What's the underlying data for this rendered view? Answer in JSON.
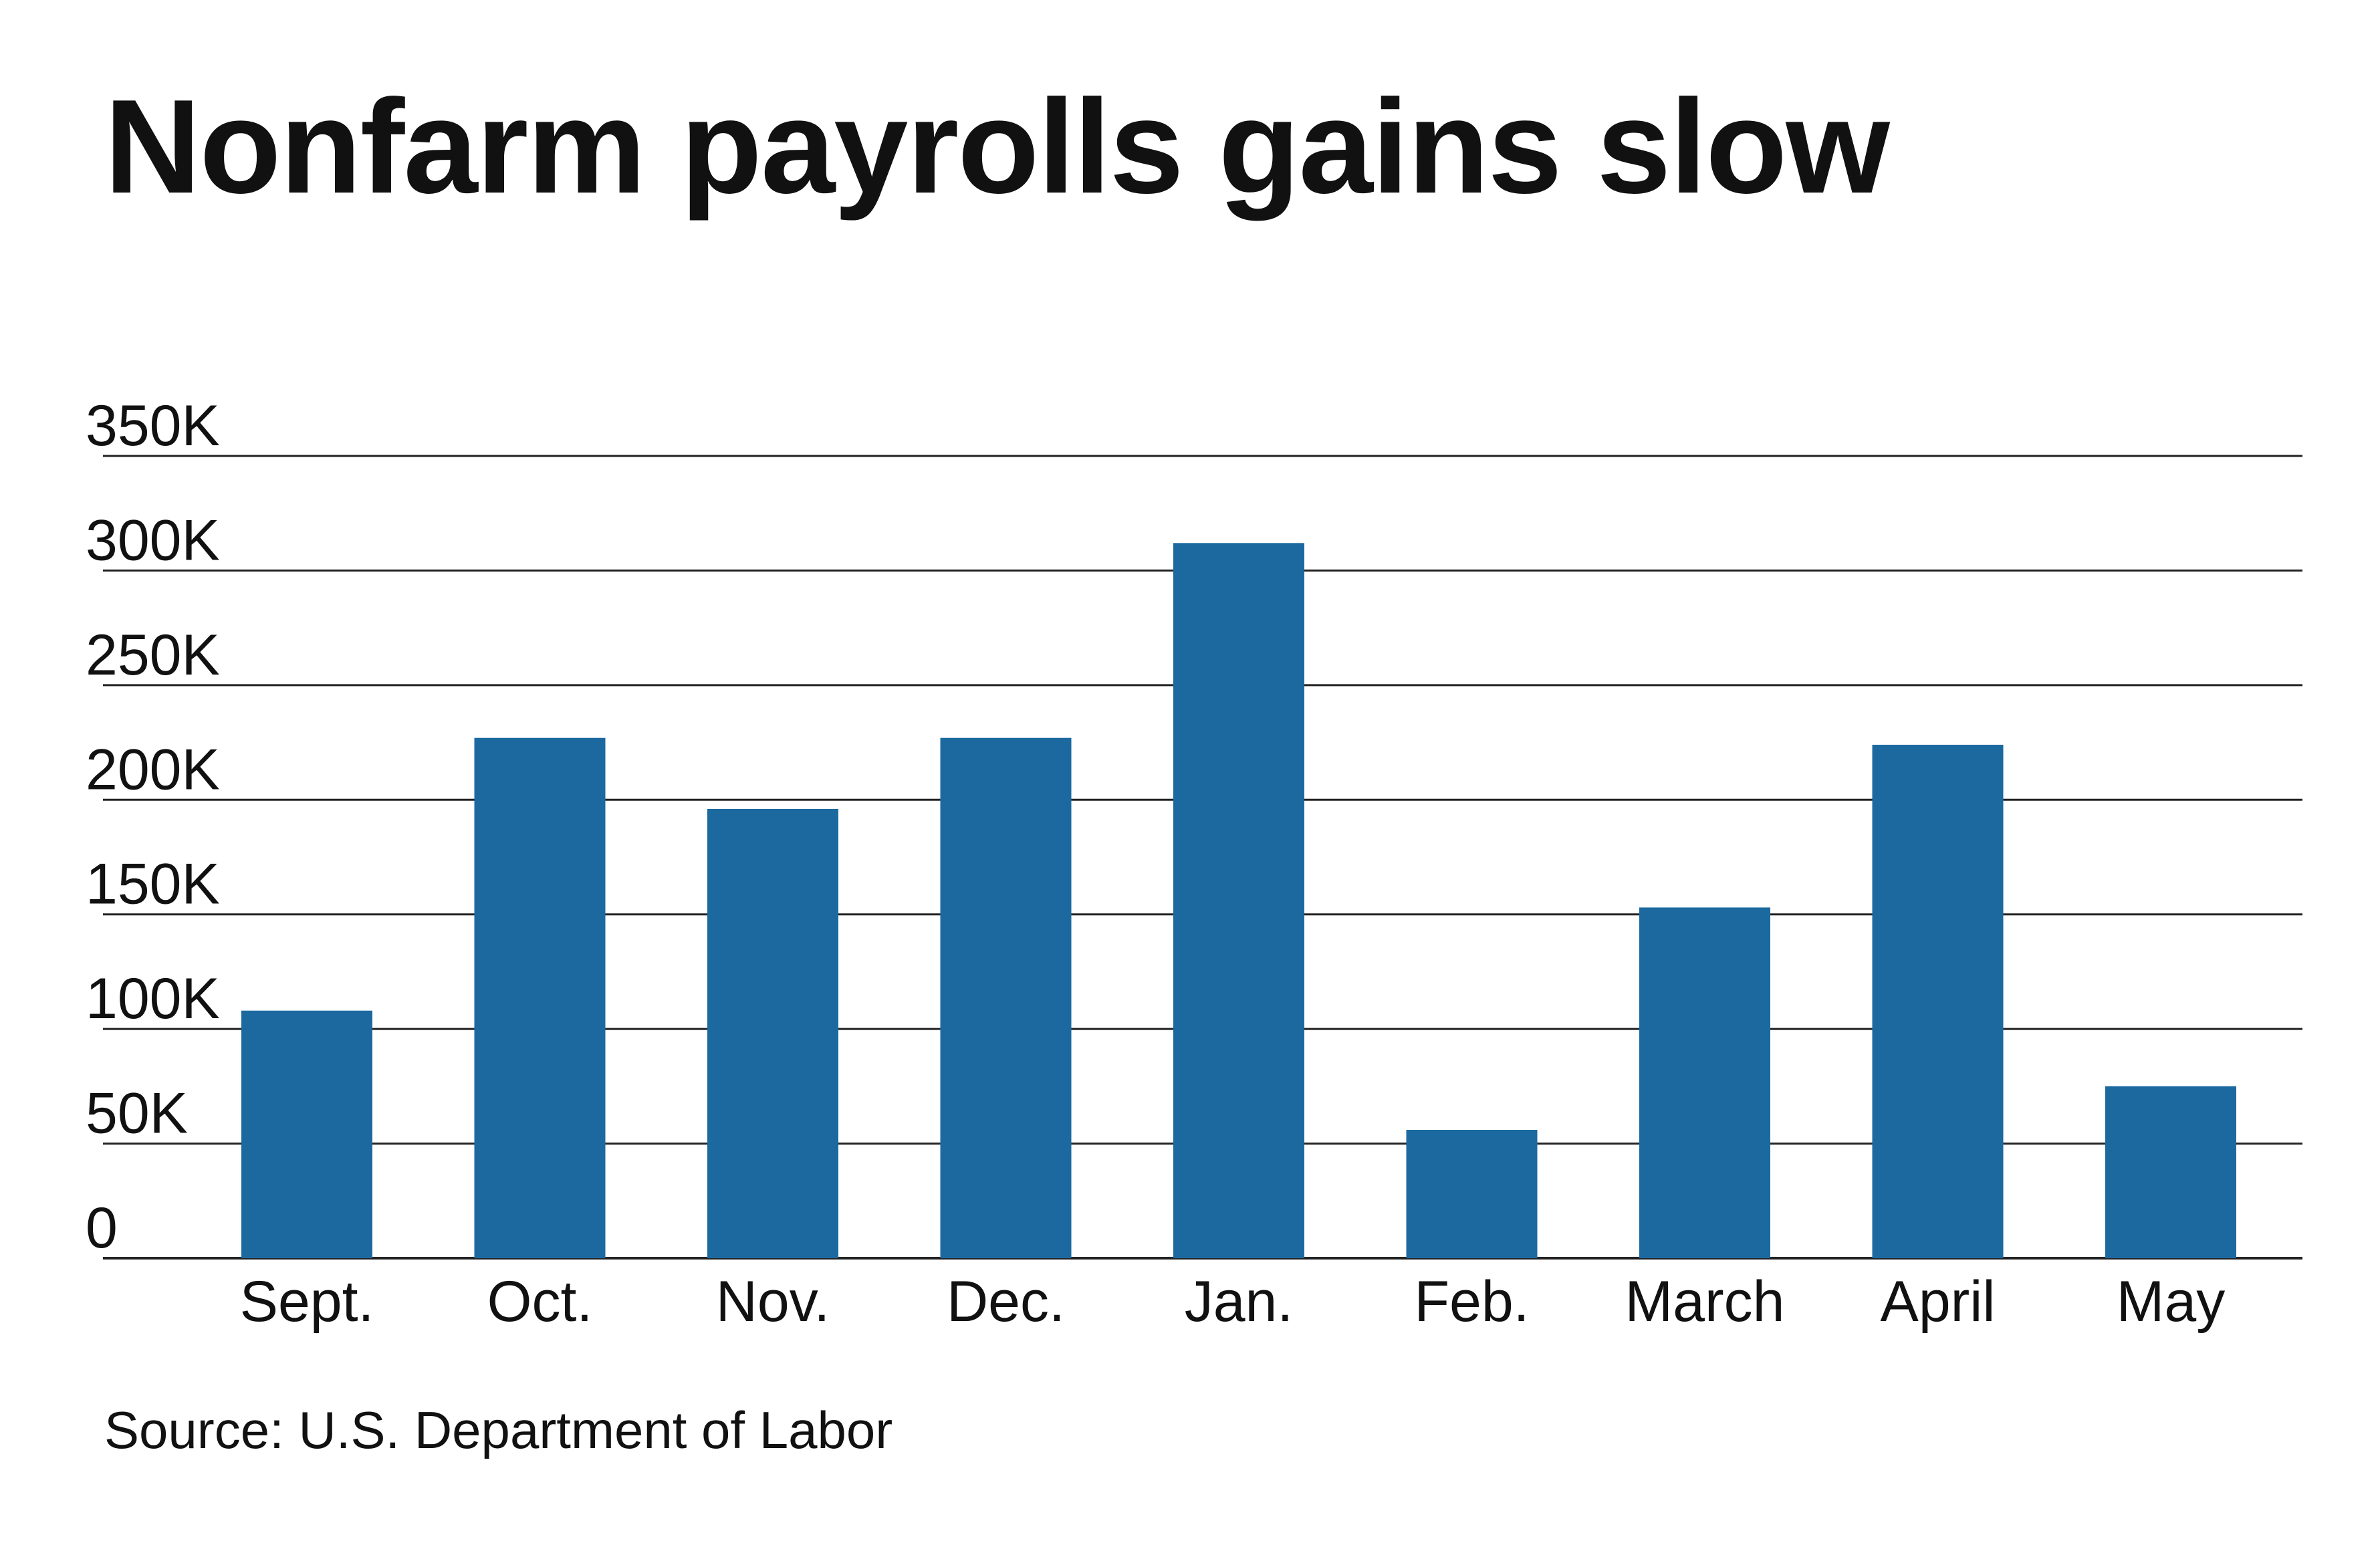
{
  "chart_data": {
    "type": "bar",
    "title": "Nonfarm payrolls gains slow",
    "source": "Source: U.S. Department of Labor",
    "categories": [
      "Sept.",
      "Oct.",
      "Nov.",
      "Dec.",
      "Jan.",
      "Feb.",
      "March",
      "April",
      "May"
    ],
    "values": [
      108000,
      227000,
      196000,
      227000,
      312000,
      56000,
      153000,
      224000,
      75000
    ],
    "ylim": [
      0,
      350000
    ],
    "yticks": [
      0,
      50000,
      100000,
      150000,
      200000,
      250000,
      300000,
      350000
    ],
    "ytick_labels": [
      "0",
      "50K",
      "100K",
      "150K",
      "200K",
      "250K",
      "300K",
      "350K"
    ],
    "xlabel": "",
    "ylabel": "",
    "grid": true,
    "colors": {
      "bar": "#1c69a0",
      "grid": "#222222",
      "text": "#111111"
    }
  }
}
